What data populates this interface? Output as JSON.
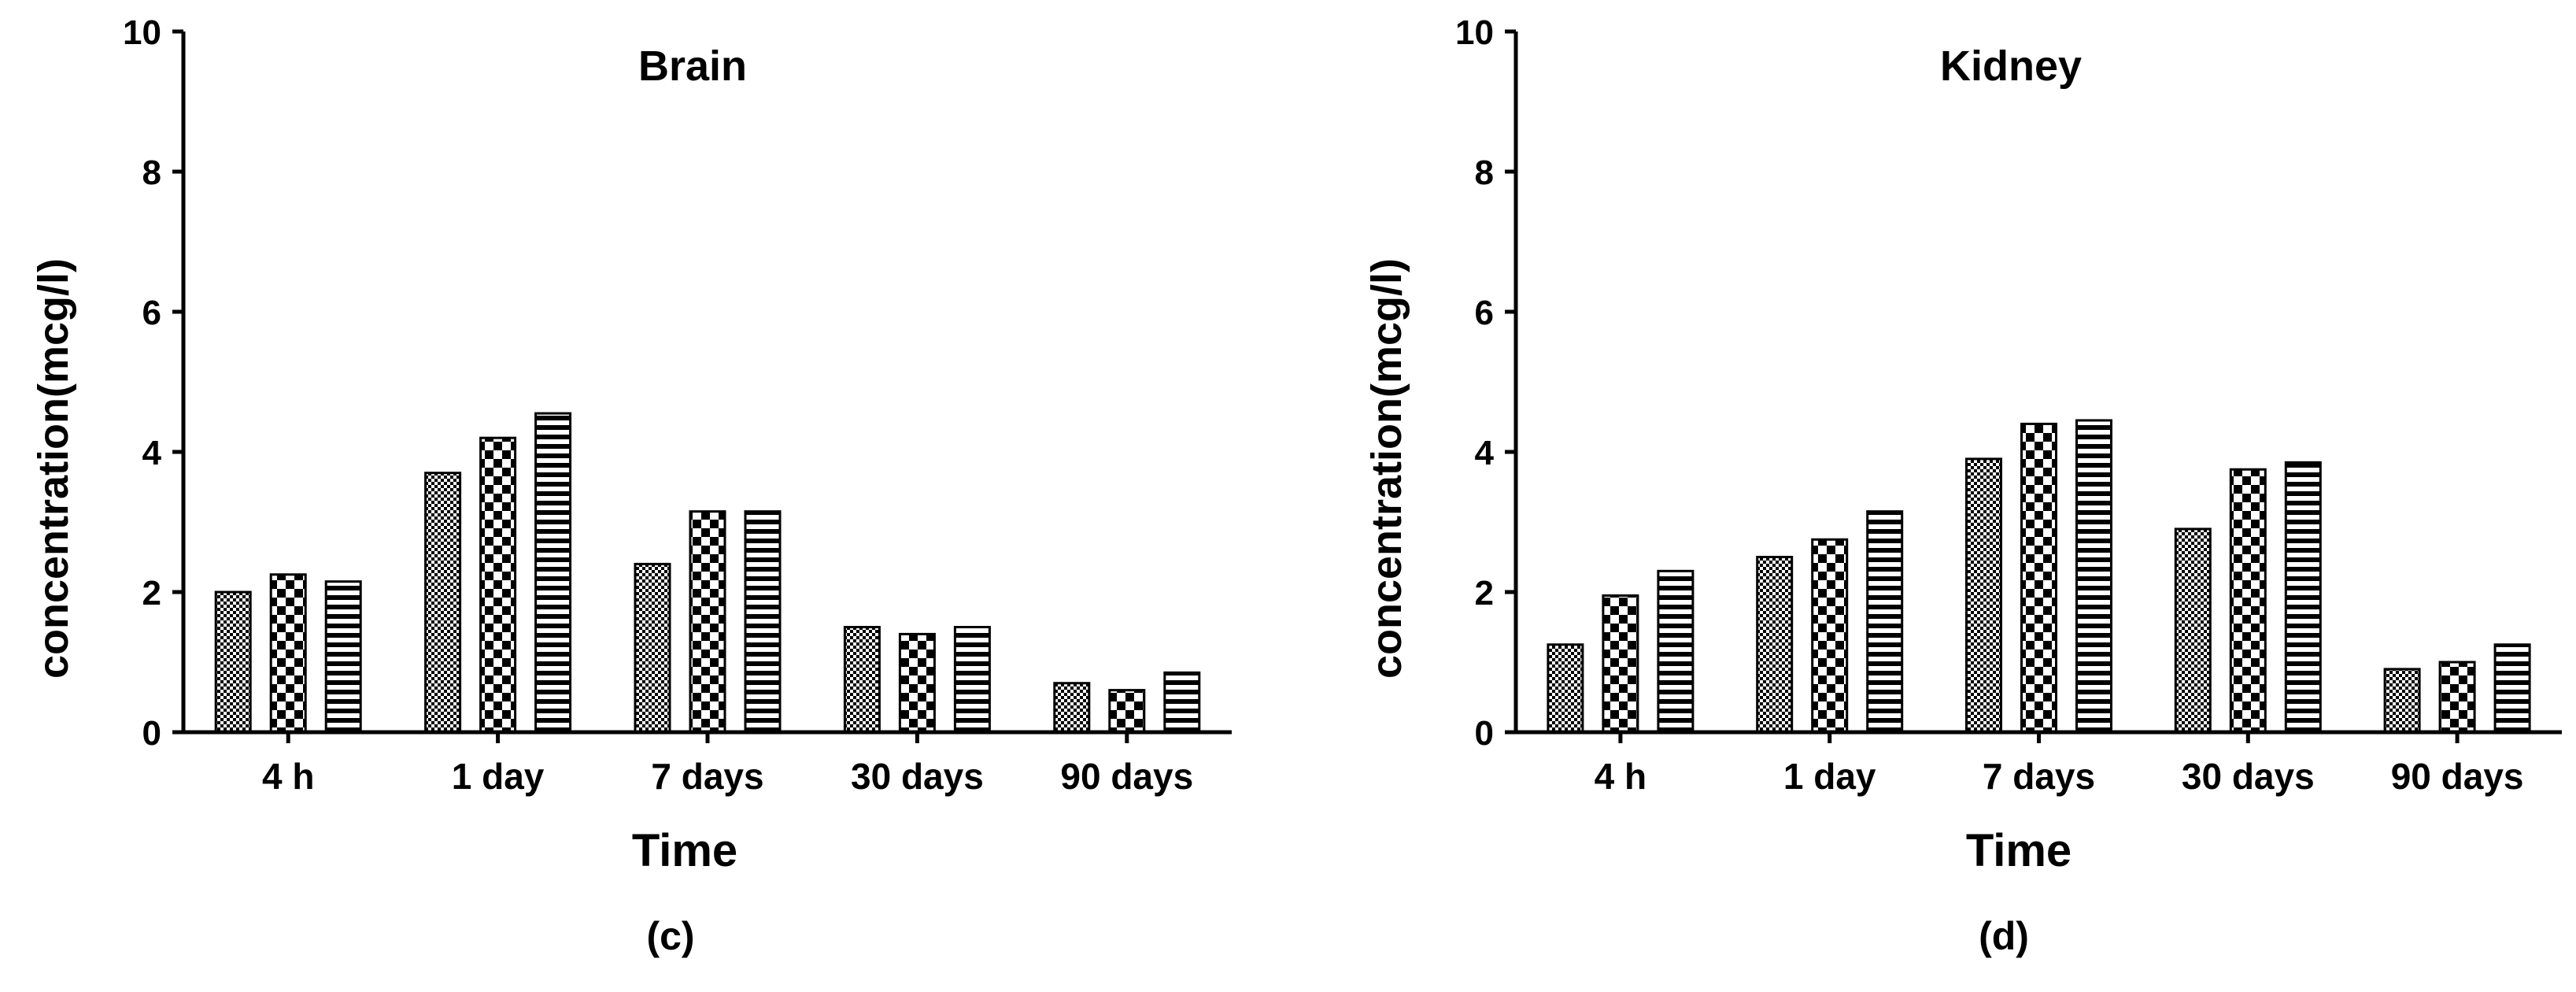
{
  "chart_data": [
    {
      "type": "bar",
      "title": "Brain",
      "xlabel": "Time",
      "ylabel": "concentration(mcg/l)",
      "ylim": [
        0,
        10
      ],
      "yticks": [
        "0",
        "2",
        "4",
        "6",
        "8",
        "10"
      ],
      "categories": [
        "4 h",
        "1 day",
        "7 days",
        "30 days",
        "90 days"
      ],
      "series": [
        {
          "pattern": "fine-check",
          "values": [
            2.0,
            3.7,
            2.4,
            1.5,
            0.7
          ]
        },
        {
          "pattern": "coarse-check",
          "values": [
            2.25,
            4.2,
            3.15,
            1.4,
            0.6
          ]
        },
        {
          "pattern": "horizontal-stripes",
          "values": [
            2.15,
            4.55,
            3.15,
            1.5,
            0.85
          ]
        }
      ],
      "caption": "(c)"
    },
    {
      "type": "bar",
      "title": "Kidney",
      "xlabel": "Time",
      "ylabel": "concentration(mcg/l)",
      "ylim": [
        0,
        10
      ],
      "yticks": [
        "0",
        "2",
        "4",
        "6",
        "8",
        "10"
      ],
      "categories": [
        "4 h",
        "1 day",
        "7 days",
        "30 days",
        "90 days"
      ],
      "series": [
        {
          "pattern": "fine-check",
          "values": [
            1.25,
            2.5,
            3.9,
            2.9,
            0.9
          ]
        },
        {
          "pattern": "coarse-check",
          "values": [
            1.95,
            2.75,
            4.4,
            3.75,
            1.0
          ]
        },
        {
          "pattern": "horizontal-stripes",
          "values": [
            2.3,
            3.15,
            4.45,
            3.85,
            1.25
          ]
        }
      ],
      "caption": "(d)"
    }
  ],
  "colors": {
    "ink": "#000000",
    "background": "#ffffff"
  }
}
